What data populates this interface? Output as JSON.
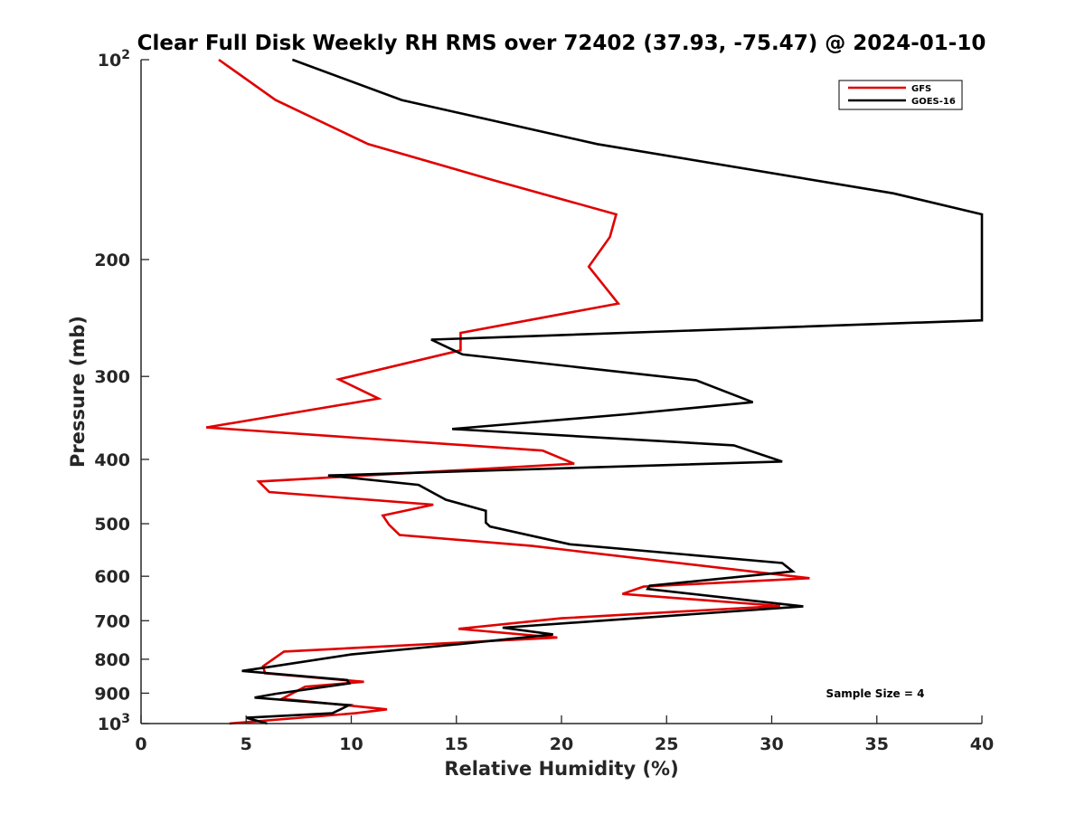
{
  "chart_data": {
    "type": "line",
    "title": "Clear Full Disk Weekly RH RMS over 72402 (37.93, -75.47) @ 2024-01-10",
    "xlabel": "Relative Humidity (%)",
    "ylabel": "Pressure (mb)",
    "xlim": [
      0,
      40
    ],
    "ylim": [
      100,
      1000
    ],
    "yscale": "log",
    "y_reversed": true,
    "xticks": [
      0,
      5,
      10,
      15,
      20,
      25,
      30,
      35,
      40
    ],
    "xtick_labels": [
      "0",
      "5",
      "10",
      "15",
      "20",
      "25",
      "30",
      "35",
      "40"
    ],
    "yticks": [
      100,
      200,
      300,
      400,
      500,
      600,
      700,
      800,
      900,
      1000
    ],
    "ytick_labels": [
      {
        "base": "10",
        "exp": "2"
      },
      {
        "base": "200",
        "exp": ""
      },
      {
        "base": "300",
        "exp": ""
      },
      {
        "base": "400",
        "exp": ""
      },
      {
        "base": "500",
        "exp": ""
      },
      {
        "base": "600",
        "exp": ""
      },
      {
        "base": "700",
        "exp": ""
      },
      {
        "base": "800",
        "exp": ""
      },
      {
        "base": "900",
        "exp": ""
      },
      {
        "base": "10",
        "exp": "3"
      }
    ],
    "legend_position": "top-right",
    "annotation": "Sample Size = 4",
    "series": [
      {
        "name": "GFS",
        "color": "#e00000",
        "x": [
          3.7,
          6.4,
          10.8,
          16.8,
          22.6,
          22.3,
          21.3,
          22.7,
          15.2,
          15.2,
          9.4,
          11.3,
          3.1,
          19.1,
          20.6,
          5.6,
          6.1,
          13.9,
          11.5,
          11.8,
          12.3,
          18.6,
          31.8,
          23.9,
          22.9,
          30.4,
          20.0,
          15.1,
          19.8,
          6.8,
          5.8,
          5.9,
          10.6,
          7.8,
          6.7,
          11.7,
          10.2,
          4.2
        ],
        "y": [
          100,
          115,
          134,
          152,
          171,
          185,
          205,
          233,
          258,
          274,
          303,
          324,
          358,
          388,
          406,
          432,
          448,
          468,
          486,
          502,
          520,
          540,
          604,
          622,
          638,
          665,
          694,
          720,
          742,
          779,
          820,
          840,
          865,
          880,
          918,
          952,
          965,
          1000
        ]
      },
      {
        "name": "GOES-16",
        "color": "#000000",
        "x": [
          7.2,
          12.4,
          21.7,
          35.8,
          40.0,
          40.0,
          13.8,
          15.3,
          26.4,
          29.1,
          23.1,
          14.8,
          28.2,
          30.5,
          8.9,
          13.2,
          14.5,
          16.4,
          16.4,
          16.6,
          20.4,
          30.5,
          31.0,
          24.2,
          24.1,
          30.0,
          31.5,
          17.2,
          19.6,
          15.0,
          10.0,
          6.3,
          4.8,
          9.8,
          9.9,
          6.4,
          5.4,
          9.9,
          9.1,
          5.0,
          6.0
        ],
        "y": [
          100,
          115,
          134,
          159,
          171,
          247,
          264,
          278,
          304,
          328,
          342,
          360,
          381,
          403,
          423,
          437,
          460,
          478,
          498,
          505,
          537,
          573,
          590,
          620,
          627,
          658,
          666,
          717,
          734,
          760,
          787,
          820,
          833,
          860,
          870,
          902,
          914,
          938,
          965,
          980,
          1000
        ]
      }
    ]
  }
}
